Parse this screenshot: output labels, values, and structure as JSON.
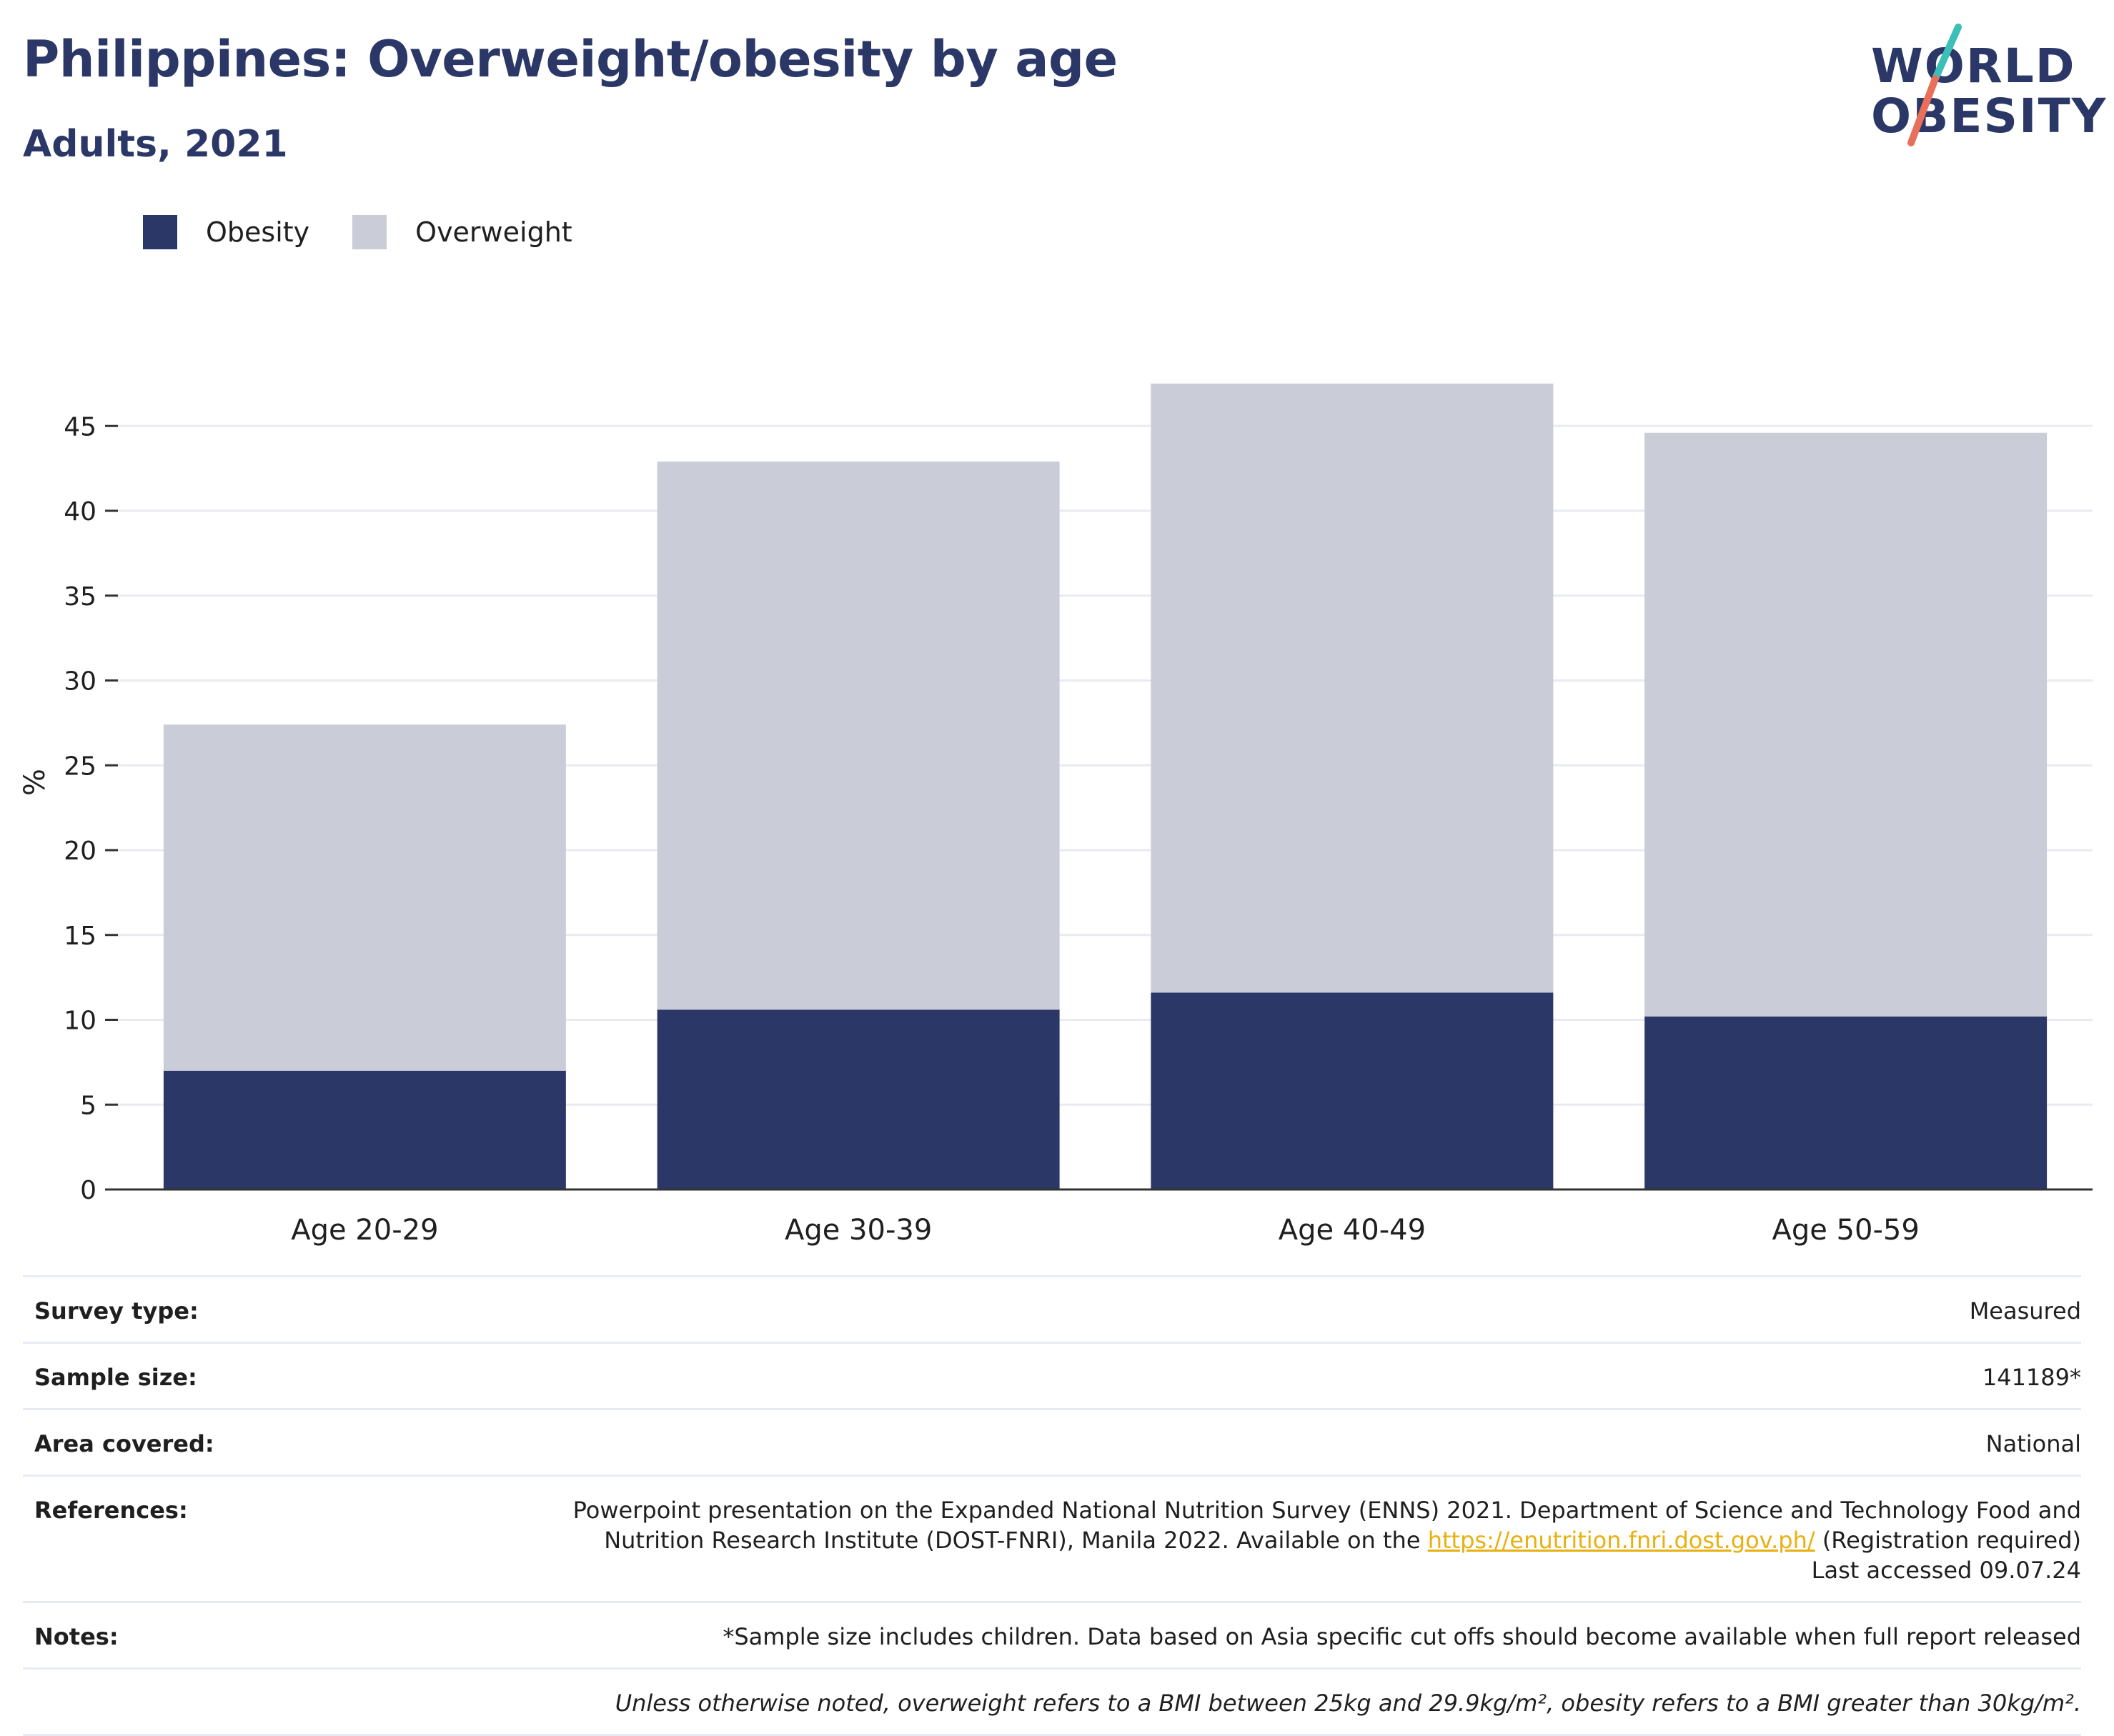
{
  "header": {
    "title": "Philippines: Overweight/obesity by age",
    "subtitle": "Adults, 2021"
  },
  "logo": {
    "line1": "WORLD",
    "line2": "OBESITY"
  },
  "legend": [
    {
      "label": "Obesity",
      "color": "#2b3766"
    },
    {
      "label": "Overweight",
      "color": "#caccd8"
    }
  ],
  "chart_data": {
    "type": "bar",
    "stacked": true,
    "categories": [
      "Age 20-29",
      "Age 30-39",
      "Age 40-49",
      "Age 50-59"
    ],
    "series": [
      {
        "name": "Obesity",
        "color": "#2b3766",
        "values": [
          7.0,
          10.6,
          11.6,
          10.2
        ]
      },
      {
        "name": "Overweight",
        "color": "#caccd8",
        "values": [
          20.4,
          32.3,
          35.9,
          34.4
        ]
      }
    ],
    "ylabel": "%",
    "ylim": [
      0,
      48
    ],
    "yticks": [
      0,
      5,
      10,
      15,
      20,
      25,
      30,
      35,
      40,
      45
    ],
    "grid": true,
    "legend_position": "top-left"
  },
  "info": {
    "survey_type_label": "Survey type:",
    "survey_type_value": "Measured",
    "sample_size_label": "Sample size:",
    "sample_size_value": "141189*",
    "area_label": "Area covered:",
    "area_value": "National",
    "references_label": "References:",
    "references_text_1": "Powerpoint presentation on the Expanded National Nutrition Survey (ENNS) 2021. Department of Science and Technology Food and Nutrition Research Institute (DOST-FNRI), Manila 2022. Available on the ",
    "references_link": "https://enutrition.fnri.dost.gov.ph/",
    "references_text_2": " (Registration required) Last accessed 09.07.24",
    "notes_label": "Notes:",
    "notes_value": "*Sample size includes children. Data based on Asia specific cut offs should become available when full report released",
    "footnote": "Unless otherwise noted, overweight refers to a BMI between 25kg and 29.9kg/m², obesity refers to a BMI greater than 30kg/m²."
  }
}
